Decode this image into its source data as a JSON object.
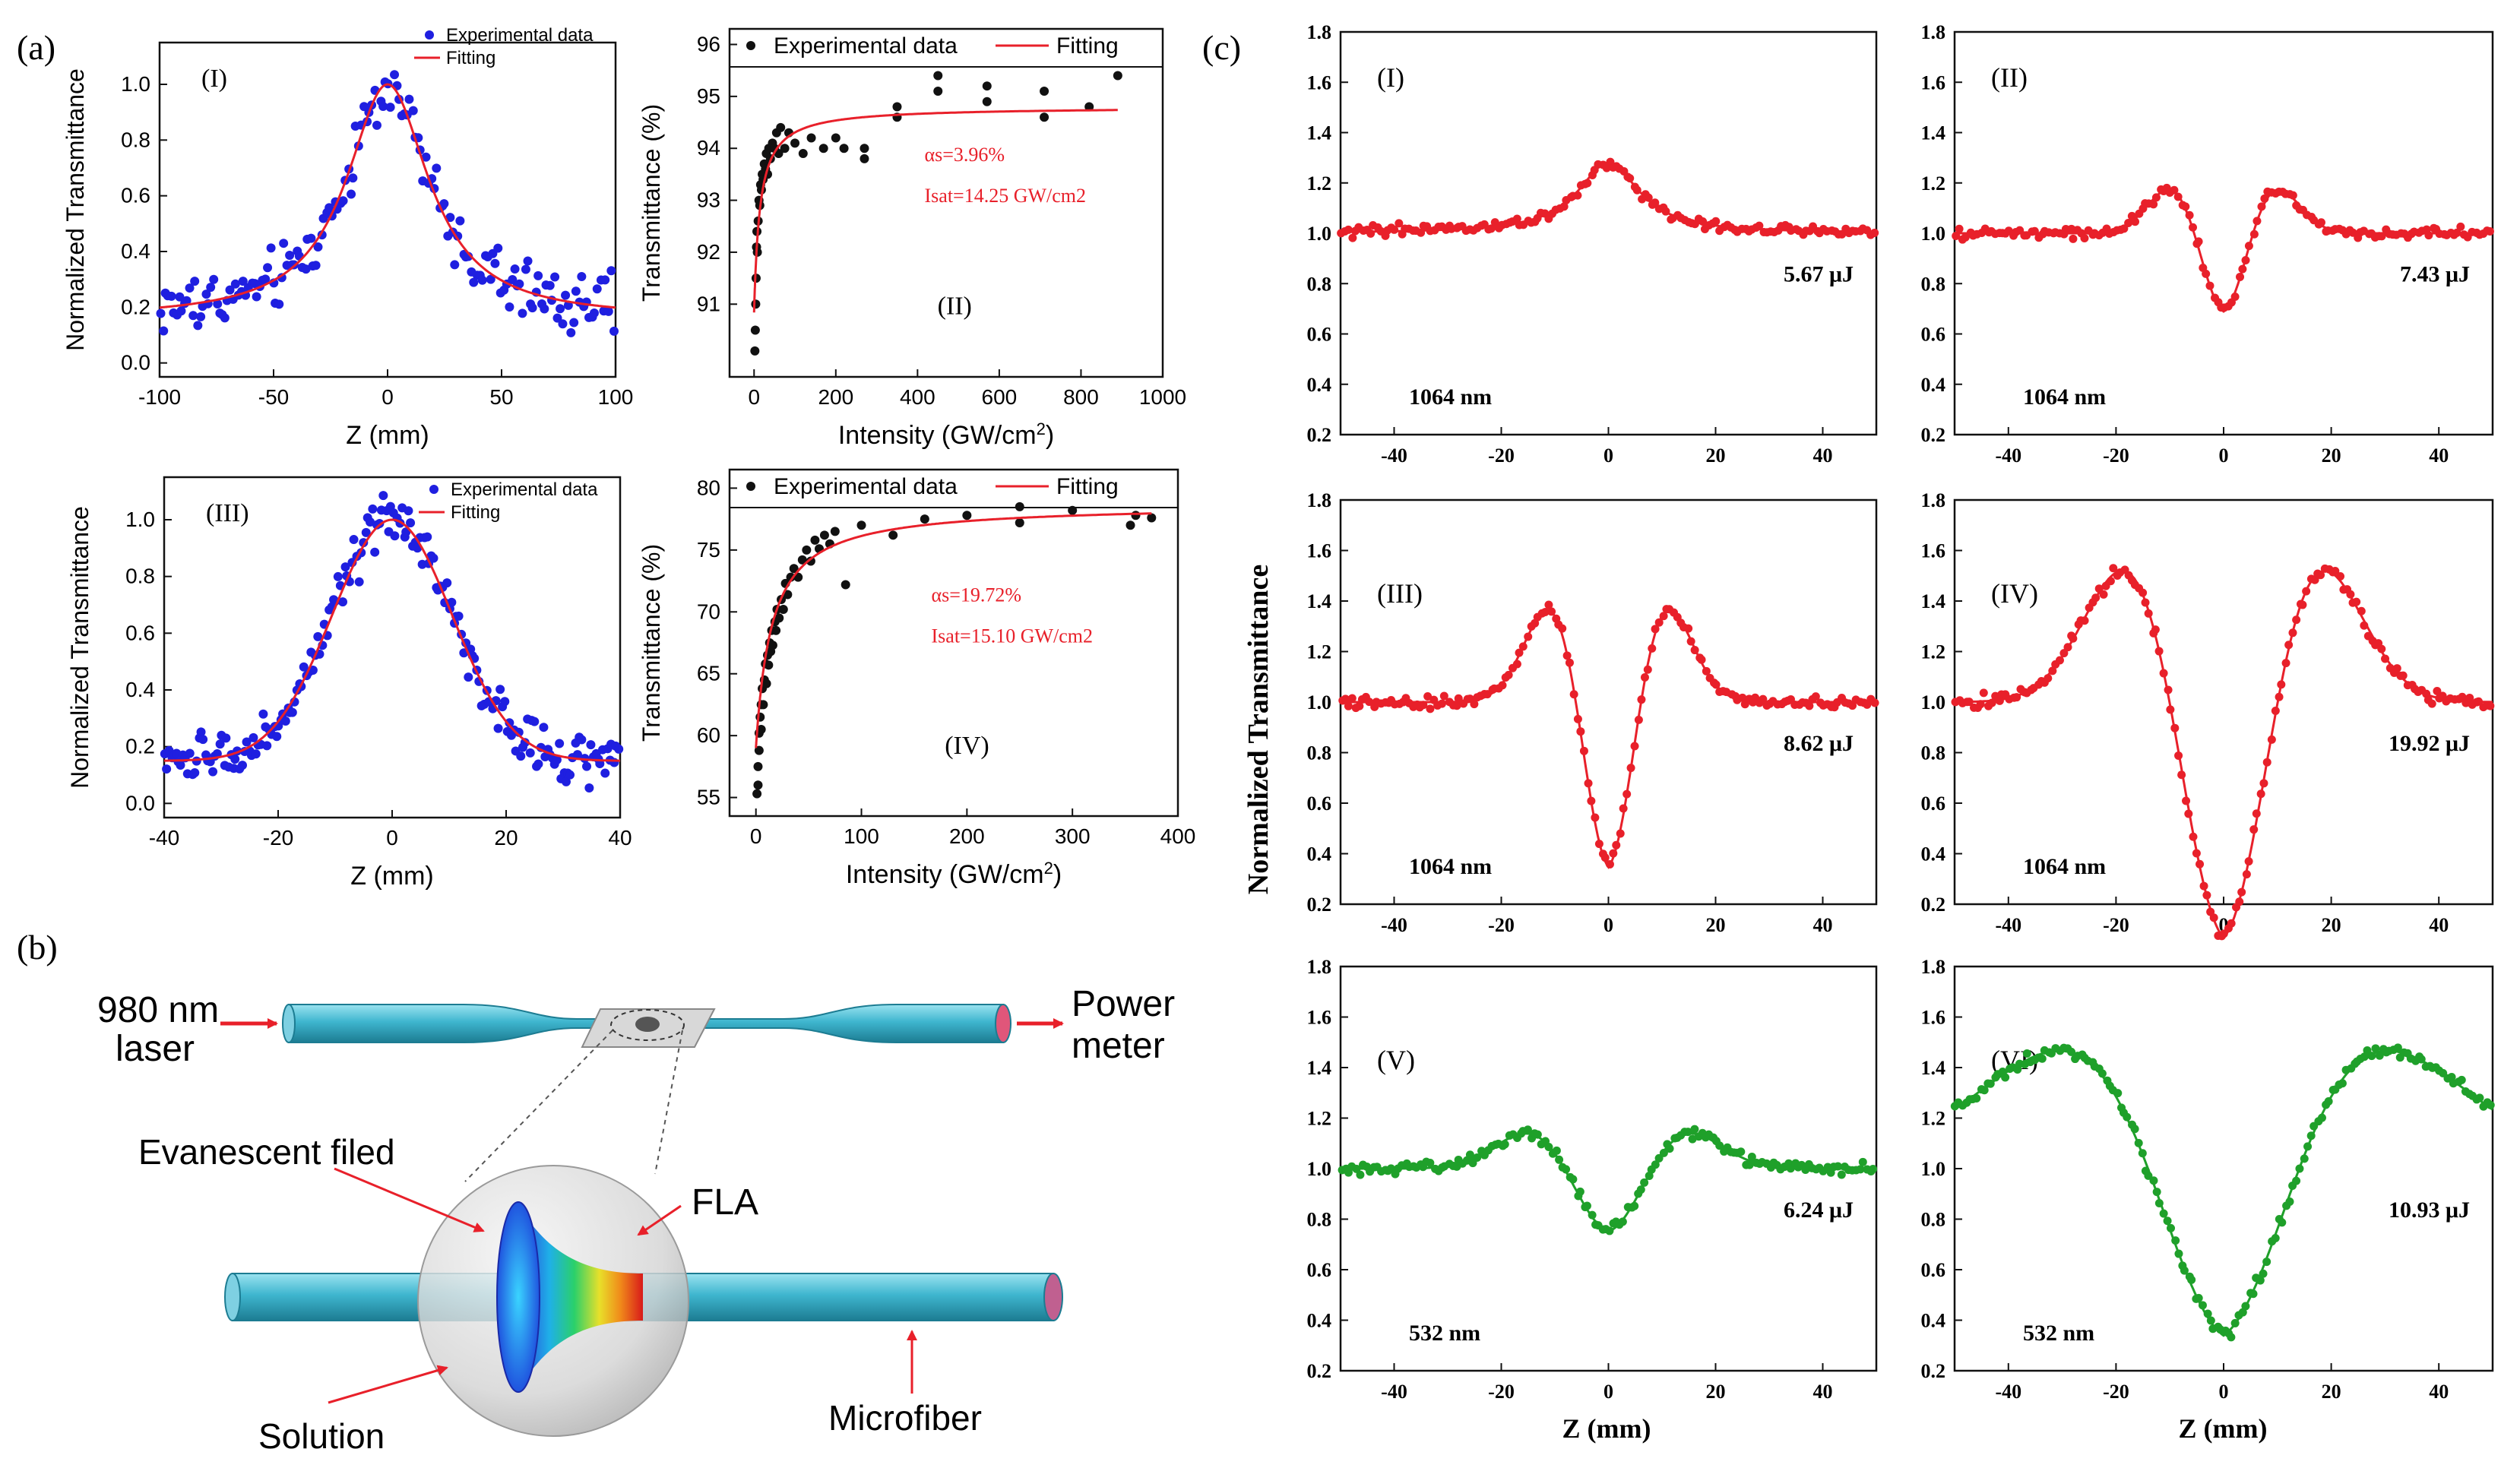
{
  "panel_labels": {
    "a": "(a)",
    "b": "(b)",
    "c": "(c)"
  },
  "colors": {
    "blue": "#1f1fe0",
    "red": "#e8202a",
    "green": "#1fa02a",
    "black": "#111111",
    "fiber": "#3fb6cf"
  },
  "chart_data": [
    {
      "id": "a1",
      "type": "scatter",
      "panel": "(I)",
      "xlabel": "Z (mm)",
      "ylabel": "Normalized Transmittance",
      "xlim": [
        -100,
        100
      ],
      "ylim": [
        -0.05,
        1.15
      ],
      "xticks": [
        -100,
        -50,
        0,
        50,
        100
      ],
      "yticks": [
        0.0,
        0.2,
        0.4,
        0.6,
        0.8,
        1.0
      ],
      "legend": [
        "Experimental data",
        "Fitting"
      ],
      "fit": {
        "kind": "lorentz",
        "base": 0.16,
        "peak": 0.84,
        "w": 22
      },
      "noise": 0.09,
      "npts": 170
    },
    {
      "id": "a2",
      "type": "scatter",
      "panel": "(II)",
      "xlabel": "Intensity (GW/cm2)",
      "ylabel": "Transmittance (%)",
      "xlim": [
        -60,
        1000
      ],
      "ylim": [
        89.6,
        96.3
      ],
      "xticks": [
        0,
        200,
        400,
        600,
        800,
        1000
      ],
      "yticks": [
        91,
        92,
        93,
        94,
        95,
        96
      ],
      "legend": [
        "Experimental data",
        "Fitting"
      ],
      "annotation": {
        "alpha": "αs=3.96%",
        "isat": "Isat=14.25 GW/cm2"
      },
      "fit": {
        "kind": "sat",
        "t0": 90.84,
        "a": 3.96,
        "isat": 14.25
      },
      "points": [
        [
          2,
          90.1
        ],
        [
          3,
          90.5
        ],
        [
          4,
          91.0
        ],
        [
          5,
          91.5
        ],
        [
          6,
          92.1
        ],
        [
          7,
          92.4
        ],
        [
          8,
          92.0
        ],
        [
          10,
          92.6
        ],
        [
          12,
          93.0
        ],
        [
          14,
          92.9
        ],
        [
          16,
          93.3
        ],
        [
          18,
          93.2
        ],
        [
          20,
          93.5
        ],
        [
          22,
          93.4
        ],
        [
          25,
          93.7
        ],
        [
          28,
          93.6
        ],
        [
          30,
          93.9
        ],
        [
          33,
          93.5
        ],
        [
          36,
          94.0
        ],
        [
          40,
          93.8
        ],
        [
          45,
          94.1
        ],
        [
          50,
          94.0
        ],
        [
          55,
          94.3
        ],
        [
          60,
          93.9
        ],
        [
          65,
          94.4
        ],
        [
          75,
          94.0
        ],
        [
          85,
          94.3
        ],
        [
          100,
          94.1
        ],
        [
          120,
          93.9
        ],
        [
          140,
          94.2
        ],
        [
          170,
          94.0
        ],
        [
          200,
          94.2
        ],
        [
          220,
          94.0
        ],
        [
          270,
          93.8
        ],
        [
          270,
          94.0
        ],
        [
          350,
          94.8
        ],
        [
          350,
          94.6
        ],
        [
          450,
          95.4
        ],
        [
          450,
          95.1
        ],
        [
          570,
          95.2
        ],
        [
          570,
          94.9
        ],
        [
          710,
          95.1
        ],
        [
          710,
          94.6
        ],
        [
          820,
          94.8
        ],
        [
          890,
          95.4
        ]
      ]
    },
    {
      "id": "a3",
      "type": "scatter",
      "panel": "(III)",
      "xlabel": "Z (mm)",
      "ylabel": "Normalized Transmittance",
      "xlim": [
        -40,
        40
      ],
      "ylim": [
        -0.05,
        1.15
      ],
      "xticks": [
        -40,
        -20,
        0,
        20,
        40
      ],
      "yticks": [
        0.0,
        0.2,
        0.4,
        0.6,
        0.8,
        1.0
      ],
      "legend": [
        "Experimental data",
        "Fitting"
      ],
      "fit": {
        "kind": "gauss2",
        "base": 0.15,
        "peak": 0.85,
        "w": 10.5
      },
      "noise": 0.07,
      "npts": 200
    },
    {
      "id": "a4",
      "type": "scatter",
      "panel": "(IV)",
      "xlabel": "Intensity (GW/cm2)",
      "ylabel": "Transmittance (%)",
      "xlim": [
        -25,
        400
      ],
      "ylim": [
        53.5,
        81.5
      ],
      "xticks": [
        0,
        100,
        200,
        300,
        400
      ],
      "yticks": [
        55,
        60,
        65,
        70,
        75,
        80
      ],
      "legend": [
        "Experimental data",
        "Fitting"
      ],
      "annotation": {
        "alpha": "αs=19.72%",
        "isat": "Isat=15.10 GW/cm2"
      },
      "fit": {
        "kind": "sat",
        "t0": 59.0,
        "a": 19.72,
        "isat": 15.1
      },
      "points": [
        [
          1,
          55.3
        ],
        [
          2,
          56.0
        ],
        [
          2,
          57.5
        ],
        [
          3,
          58.8
        ],
        [
          3,
          60.2
        ],
        [
          4,
          61.5
        ],
        [
          5,
          62.5
        ],
        [
          5,
          60.5
        ],
        [
          6,
          63.8
        ],
        [
          7,
          62.5
        ],
        [
          8,
          64.5
        ],
        [
          9,
          65.8
        ],
        [
          10,
          64.2
        ],
        [
          11,
          66.5
        ],
        [
          12,
          65.7
        ],
        [
          13,
          67.5
        ],
        [
          14,
          66.8
        ],
        [
          15,
          68.5
        ],
        [
          16,
          67.3
        ],
        [
          18,
          69.2
        ],
        [
          19,
          68.5
        ],
        [
          20,
          70.2
        ],
        [
          22,
          69.5
        ],
        [
          24,
          71.0
        ],
        [
          26,
          70.2
        ],
        [
          28,
          72.3
        ],
        [
          30,
          71.4
        ],
        [
          33,
          72.8
        ],
        [
          36,
          73.5
        ],
        [
          40,
          72.8
        ],
        [
          44,
          74.2
        ],
        [
          48,
          75.0
        ],
        [
          52,
          74.1
        ],
        [
          56,
          75.8
        ],
        [
          60,
          75.1
        ],
        [
          65,
          76.2
        ],
        [
          70,
          75.5
        ],
        [
          75,
          76.5
        ],
        [
          85,
          72.2
        ],
        [
          100,
          77.0
        ],
        [
          130,
          76.2
        ],
        [
          160,
          77.5
        ],
        [
          200,
          77.8
        ],
        [
          250,
          78.5
        ],
        [
          250,
          77.2
        ],
        [
          300,
          78.2
        ],
        [
          355,
          77.0
        ],
        [
          360,
          77.8
        ],
        [
          375,
          77.6
        ]
      ]
    },
    {
      "id": "c1",
      "type": "scatter",
      "panel": "(I)",
      "energy": "5.67 μJ",
      "wavelength": "1064 nm",
      "color": "red",
      "xlim": [
        -50,
        50
      ],
      "ylim": [
        0.2,
        1.8
      ],
      "xticks": [
        -40,
        -20,
        0,
        20,
        40
      ],
      "yticks": [
        0.2,
        0.4,
        0.6,
        0.8,
        1.0,
        1.2,
        1.4,
        1.6,
        1.8
      ],
      "fit": {
        "kind": "peak",
        "amp": 0.28,
        "w": 7
      },
      "noise": 0.018,
      "npts": 150
    },
    {
      "id": "c2",
      "type": "scatter",
      "panel": "(II)",
      "energy": "7.43 μJ",
      "wavelength": "1064 nm",
      "color": "red",
      "xlim": [
        -50,
        50
      ],
      "ylim": [
        0.2,
        1.8
      ],
      "xticks": [
        -40,
        -20,
        0,
        20,
        40
      ],
      "yticks": [
        0.2,
        0.4,
        0.6,
        0.8,
        1.0,
        1.2,
        1.4,
        1.6,
        1.8
      ],
      "fit": {
        "kind": "pv",
        "amp": 0.2,
        "w": 9
      },
      "noise": 0.018,
      "npts": 150
    },
    {
      "id": "c3",
      "type": "scatter",
      "panel": "(III)",
      "energy": "8.62 μJ",
      "wavelength": "1064 nm",
      "color": "red",
      "xlim": [
        -50,
        50
      ],
      "ylim": [
        0.2,
        1.8
      ],
      "xticks": [
        -40,
        -20,
        0,
        20,
        40
      ],
      "yticks": [
        0.2,
        0.4,
        0.6,
        0.8,
        1.0,
        1.2,
        1.4,
        1.6,
        1.8
      ],
      "fit": {
        "kind": "pv",
        "amp": 0.42,
        "w": 10
      },
      "noise": 0.02,
      "npts": 150
    },
    {
      "id": "c4",
      "type": "scatter",
      "panel": "(IV)",
      "energy": "19.92 μJ",
      "wavelength": "1064 nm",
      "color": "red",
      "xlim": [
        -50,
        50
      ],
      "ylim": [
        0.2,
        1.8
      ],
      "xticks": [
        -40,
        -20,
        0,
        20,
        40
      ],
      "yticks": [
        0.2,
        0.4,
        0.6,
        0.8,
        1.0,
        1.2,
        1.4,
        1.6,
        1.8
      ],
      "fit": {
        "kind": "pv",
        "amp": 0.6,
        "w": 16.5
      },
      "noise": 0.022,
      "npts": 150
    },
    {
      "id": "c5",
      "type": "scatter",
      "panel": "(V)",
      "energy": "6.24 μJ",
      "wavelength": "532 nm",
      "color": "green",
      "xlim": [
        -50,
        50
      ],
      "ylim": [
        0.2,
        1.8
      ],
      "xticks": [
        -40,
        -20,
        0,
        20,
        40
      ],
      "yticks": [
        0.2,
        0.4,
        0.6,
        0.8,
        1.0,
        1.2,
        1.4,
        1.6,
        1.8
      ],
      "fit": {
        "kind": "pv",
        "amp": 0.16,
        "w": 13.5
      },
      "noise": 0.018,
      "npts": 150
    },
    {
      "id": "c6",
      "type": "scatter",
      "panel": "(VI)",
      "energy": "10.93 μJ",
      "wavelength": "532 nm",
      "color": "green",
      "xlim": [
        -50,
        50
      ],
      "ylim": [
        0.2,
        1.8
      ],
      "xticks": [
        -40,
        -20,
        0,
        20,
        40
      ],
      "yticks": [
        0.2,
        0.4,
        0.6,
        0.8,
        1.0,
        1.2,
        1.4,
        1.6,
        1.8
      ],
      "fit": {
        "kind": "pv",
        "amp": 0.52,
        "w": 25,
        "wide": true
      },
      "noise": 0.022,
      "npts": 150
    }
  ],
  "c_axis": {
    "xlabel": "Z (mm)",
    "ylabel": "Normalized Transmittance"
  },
  "diagram": {
    "laser_label_1": "980 nm",
    "laser_label_2": "laser",
    "meter_label_1": "Power",
    "meter_label_2": "meter",
    "evanescent": "Evanescent filed",
    "fla": "FLA",
    "solution": "Solution",
    "microfiber": "Microfiber"
  }
}
